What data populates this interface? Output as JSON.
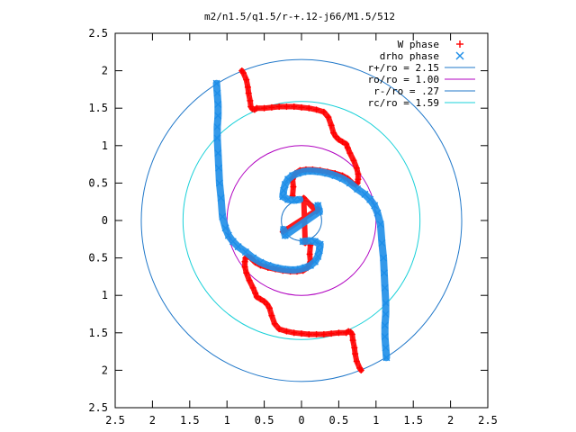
{
  "chart_data": {
    "type": "scatter",
    "title": "m2/n1.5/q1.5/r-+.12-j66/M1.5/512",
    "xlabel": "",
    "ylabel": "",
    "xlim": [
      -2.5,
      2.5
    ],
    "ylim": [
      -2.5,
      2.5
    ],
    "x_ticks": [
      -2.5,
      -2,
      -1.5,
      -1,
      -0.5,
      0,
      0.5,
      1,
      1.5,
      2,
      2.5
    ],
    "y_ticks": [
      -2.5,
      -2,
      -1.5,
      -1,
      -0.5,
      0,
      0.5,
      1,
      1.5,
      2,
      2.5
    ],
    "x_tick_labels": [
      "2.5",
      "2",
      "1.5",
      "1",
      "0.5",
      "0",
      "0.5",
      "1",
      "1.5",
      "2",
      "2.5"
    ],
    "y_tick_labels": [
      "2.5",
      "2",
      "1.5",
      "1",
      "0.5",
      "0",
      "0.5",
      "1",
      "1.5",
      "2",
      "2.5"
    ],
    "grid": false,
    "legend_position": "top-right",
    "series": [
      {
        "name": "W phase",
        "kind": "points",
        "marker": "+",
        "color": "#ff0000",
        "x": [
          -0.8,
          -0.78,
          -0.74,
          -0.72,
          -0.71,
          -0.69,
          -0.68,
          -0.66,
          -0.63,
          -0.6,
          -0.5,
          -0.4,
          -0.3,
          -0.2,
          -0.1,
          0,
          0.1,
          0.2,
          0.3,
          0.36,
          0.4,
          0.43,
          0.46,
          0.5,
          0.55,
          0.6,
          0.62,
          0.65,
          0.7,
          0.74,
          0.76,
          0.76,
          0.75,
          0.72,
          0.68,
          0.62,
          0.55,
          0.45,
          0.35,
          0.25,
          0.15,
          0.06,
          -0.02,
          -0.08,
          -0.12,
          -0.11,
          -0.12,
          0.8,
          0.78,
          0.74,
          0.72,
          0.71,
          0.69,
          0.68,
          0.66,
          0.63,
          0.6,
          0.5,
          0.4,
          0.3,
          0.2,
          0.1,
          0,
          -0.1,
          -0.2,
          -0.3,
          -0.36,
          -0.4,
          -0.43,
          -0.46,
          -0.5,
          -0.55,
          -0.6,
          -0.62,
          -0.65,
          -0.7,
          -0.74,
          -0.76,
          -0.76,
          -0.75,
          -0.72,
          -0.68,
          -0.62,
          -0.55,
          -0.45,
          -0.35,
          -0.25,
          -0.15,
          -0.06,
          0.02,
          0.08,
          0.12,
          0.11,
          0.12,
          -0.25,
          -0.2,
          0.22,
          0.2,
          0.03,
          0.05
        ],
        "y": [
          2.0,
          1.97,
          1.88,
          1.78,
          1.7,
          1.6,
          1.52,
          1.49,
          1.48,
          1.5,
          1.5,
          1.51,
          1.52,
          1.52,
          1.52,
          1.51,
          1.5,
          1.48,
          1.45,
          1.38,
          1.27,
          1.17,
          1.12,
          1.08,
          1.05,
          1.02,
          0.97,
          0.9,
          0.8,
          0.7,
          0.62,
          0.55,
          0.5,
          0.48,
          0.5,
          0.56,
          0.6,
          0.63,
          0.65,
          0.67,
          0.68,
          0.68,
          0.67,
          0.63,
          0.55,
          0.45,
          0.33,
          -2.0,
          -1.97,
          -1.88,
          -1.78,
          -1.7,
          -1.6,
          -1.52,
          -1.49,
          -1.48,
          -1.5,
          -1.5,
          -1.51,
          -1.52,
          -1.52,
          -1.52,
          -1.51,
          -1.5,
          -1.48,
          -1.45,
          -1.38,
          -1.27,
          -1.17,
          -1.12,
          -1.08,
          -1.05,
          -1.02,
          -0.97,
          -0.9,
          -0.8,
          -0.7,
          -0.62,
          -0.55,
          -0.5,
          -0.48,
          -0.5,
          -0.56,
          -0.6,
          -0.63,
          -0.65,
          -0.67,
          -0.68,
          -0.68,
          -0.67,
          -0.63,
          -0.55,
          -0.45,
          -0.33,
          -0.15,
          -0.12,
          0.15,
          0.12,
          0.3,
          -0.3
        ]
      },
      {
        "name": "drho phase",
        "kind": "points",
        "marker": "x",
        "color": "#1e8ee8",
        "x": [
          -1.14,
          -1.13,
          -1.12,
          -1.12,
          -1.13,
          -1.13,
          -1.12,
          -1.11,
          -1.1,
          -1.08,
          -1.06,
          -1.02,
          -0.98,
          -0.92,
          -0.85,
          -0.75,
          -0.65,
          -0.55,
          -0.45,
          -0.35,
          -0.25,
          -0.15,
          -0.08,
          -0.02,
          0.05,
          0.12,
          0.18,
          0.22,
          0.24,
          0.25,
          0.18,
          0.1,
          0.02,
          1.14,
          1.13,
          1.12,
          1.12,
          1.13,
          1.13,
          1.12,
          1.11,
          1.1,
          1.08,
          1.06,
          1.02,
          0.98,
          0.92,
          0.85,
          0.75,
          0.65,
          0.55,
          0.45,
          0.35,
          0.25,
          0.15,
          0.08,
          0.02,
          -0.05,
          -0.12,
          -0.18,
          -0.22,
          -0.24,
          -0.25,
          -0.18,
          -0.1,
          -0.02,
          -0.24,
          -0.22,
          0.24,
          0.22
        ],
        "y": [
          1.83,
          1.7,
          1.55,
          1.4,
          1.25,
          1.1,
          0.9,
          0.7,
          0.5,
          0.3,
          0.05,
          -0.1,
          -0.2,
          -0.28,
          -0.35,
          -0.42,
          -0.5,
          -0.56,
          -0.6,
          -0.63,
          -0.65,
          -0.66,
          -0.66,
          -0.65,
          -0.63,
          -0.6,
          -0.55,
          -0.48,
          -0.4,
          -0.32,
          -0.28,
          -0.27,
          -0.28,
          -1.83,
          -1.7,
          -1.55,
          -1.4,
          -1.25,
          -1.1,
          -0.9,
          -0.7,
          -0.5,
          -0.3,
          -0.05,
          0.1,
          0.2,
          0.28,
          0.35,
          0.42,
          0.5,
          0.56,
          0.6,
          0.63,
          0.65,
          0.66,
          0.66,
          0.65,
          0.63,
          0.6,
          0.55,
          0.48,
          0.4,
          0.32,
          0.28,
          0.27,
          0.28,
          -0.12,
          -0.2,
          0.12,
          0.2
        ]
      },
      {
        "name": "r+/ro = 2.15",
        "kind": "circle",
        "radius": 2.15,
        "color": "#1f77c9"
      },
      {
        "name": "ro/ro = 1.00",
        "kind": "circle",
        "radius": 1.0,
        "color": "#b000c0"
      },
      {
        "name": "r-/ro = .27",
        "kind": "circle",
        "radius": 0.27,
        "color": "#1f77c9"
      },
      {
        "name": "rc/ro = 1.59",
        "kind": "circle",
        "radius": 1.59,
        "color": "#18d0d8"
      }
    ]
  }
}
